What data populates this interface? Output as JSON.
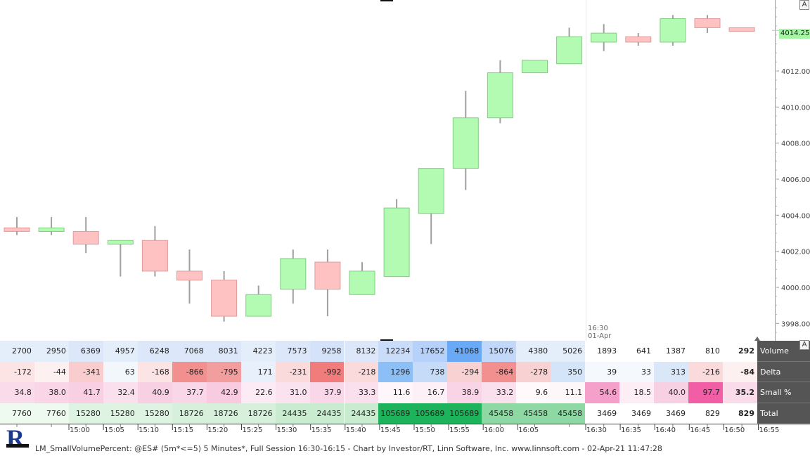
{
  "chart_data": {
    "type": "candlestick",
    "price_labels": [
      "4014.25",
      "4012.00",
      "4010.00",
      "4008.00",
      "4006.00",
      "4004.00",
      "4002.00",
      "4000.00",
      "3998.00"
    ],
    "current_price": "4014.25",
    "session_label_time": "16:30",
    "session_label_date": "01-Apr",
    "candles": [
      {
        "open": 4003.3,
        "close": 4003.1,
        "high": 4003.9,
        "low": 4002.9
      },
      {
        "open": 4003.1,
        "close": 4003.3,
        "high": 4003.9,
        "low": 4002.9
      },
      {
        "open": 4003.1,
        "close": 4002.4,
        "high": 4003.9,
        "low": 4001.9
      },
      {
        "open": 4002.4,
        "close": 4002.6,
        "high": 4002.6,
        "low": 4000.6
      },
      {
        "open": 4002.6,
        "close": 4000.9,
        "high": 4003.4,
        "low": 4000.6
      },
      {
        "open": 4000.9,
        "close": 4000.4,
        "high": 4002.1,
        "low": 3999.1
      },
      {
        "open": 4000.4,
        "close": 3998.4,
        "high": 4000.9,
        "low": 3998.1
      },
      {
        "open": 3998.4,
        "close": 3999.6,
        "high": 4000.1,
        "low": 3998.4
      },
      {
        "open": 3999.9,
        "close": 4001.6,
        "high": 4002.1,
        "low": 3999.1
      },
      {
        "open": 4001.4,
        "close": 3999.9,
        "high": 4002.1,
        "low": 3998.4
      },
      {
        "open": 3999.6,
        "close": 4000.9,
        "high": 4001.4,
        "low": 3999.6
      },
      {
        "open": 4000.6,
        "close": 4004.4,
        "high": 4004.9,
        "low": 4000.6
      },
      {
        "open": 4004.1,
        "close": 4006.6,
        "high": 4006.6,
        "low": 4002.4
      },
      {
        "open": 4006.6,
        "close": 4009.4,
        "high": 4010.9,
        "low": 4005.4
      },
      {
        "open": 4009.4,
        "close": 4011.9,
        "high": 4012.6,
        "low": 4009.1
      },
      {
        "open": 4011.9,
        "close": 4012.6,
        "high": 4012.6,
        "low": 4011.9
      },
      {
        "open": 4012.4,
        "close": 4013.9,
        "high": 4014.4,
        "low": 4012.4
      },
      {
        "open": 4013.6,
        "close": 4014.1,
        "high": 4014.6,
        "low": 4013.1
      },
      {
        "open": 4013.9,
        "close": 4013.6,
        "high": 4014.1,
        "low": 4013.4
      },
      {
        "open": 4013.6,
        "close": 4014.9,
        "high": 4015.1,
        "low": 4013.4
      },
      {
        "open": 4014.9,
        "close": 4014.4,
        "high": 4015.1,
        "low": 4014.1
      },
      {
        "open": 4014.4,
        "close": 4014.2,
        "high": 4014.4,
        "low": 4014.2
      }
    ],
    "time_labels": [
      "15:00",
      "15:05",
      "15:10",
      "15:15",
      "15:20",
      "15:25",
      "15:30",
      "15:35",
      "15:40",
      "15:45",
      "15:50",
      "15:55",
      "16:00",
      "16:05",
      "16:30",
      "16:35",
      "16:40",
      "16:45",
      "16:50",
      "16:55"
    ]
  },
  "stats_table": {
    "rows": [
      {
        "label": "Volume",
        "values": [
          "2700",
          "2950",
          "6369",
          "4957",
          "6248",
          "7068",
          "8031",
          "4223",
          "7573",
          "9258",
          "8132",
          "12234",
          "17652",
          "41068",
          "15076",
          "4380",
          "5026",
          "1893",
          "641",
          "1387",
          "810"
        ],
        "summary": "292",
        "colors": [
          "#e4edfa",
          "#e4edfa",
          "#dce8fa",
          "#e4edfa",
          "#dce8fa",
          "#dce8fa",
          "#dce8fa",
          "#e4edfa",
          "#dce8fa",
          "#d4e3fa",
          "#dce8fa",
          "#c9ddfa",
          "#b6d1fa",
          "#6aa9f5",
          "#c2d8fa",
          "#e4edfa",
          "#e4edfa",
          "#ffffff",
          "#ffffff",
          "#ffffff",
          "#ffffff"
        ],
        "summary_color": "#ffffff"
      },
      {
        "label": "Delta",
        "values": [
          "-172",
          "-44",
          "-341",
          "63",
          "-168",
          "-866",
          "-795",
          "171",
          "-231",
          "-992",
          "-218",
          "1296",
          "738",
          "-294",
          "-864",
          "-278",
          "350",
          "39",
          "33",
          "313",
          "-216"
        ],
        "summary": "-84",
        "colors": [
          "#fce4e4",
          "#fdf0f0",
          "#f9cdcd",
          "#f2f7fc",
          "#fce4e4",
          "#f2908f",
          "#f39e9e",
          "#e8f0fb",
          "#fadada",
          "#f07c7c",
          "#fadada",
          "#8cbff5",
          "#c5dbf8",
          "#f8d2d2",
          "#f2908f",
          "#f8d2d2",
          "#d4e5f9",
          "#f5f9fd",
          "#f5f9fd",
          "#d9e7f9",
          "#fadada"
        ],
        "summary_color": "#fdf0f0"
      },
      {
        "label": "Small %",
        "values": [
          "34.8",
          "38.0",
          "41.7",
          "32.4",
          "40.9",
          "37.7",
          "42.9",
          "22.6",
          "31.0",
          "37.9",
          "33.3",
          "11.6",
          "16.7",
          "38.9",
          "33.2",
          "9.6",
          "11.1",
          "54.6",
          "18.5",
          "40.0",
          "97.7"
        ],
        "summary": "35.2",
        "colors": [
          "#f9dbea",
          "#f9d5e7",
          "#f8cfe3",
          "#fae0ed",
          "#f8d0e4",
          "#f9d6e8",
          "#f8cbe1",
          "#fcebf4",
          "#fae2ee",
          "#f9d6e8",
          "#fae0ed",
          "#fef6fa",
          "#fdf0f6",
          "#f9d4e7",
          "#fae0ed",
          "#fff9fc",
          "#fef7fa",
          "#f59fcb",
          "#fdeef5",
          "#f8d0e4",
          "#f25ea6"
        ],
        "summary_color": "#f9dbea"
      },
      {
        "label": "Total",
        "values": [
          "7760",
          "7760",
          "15280",
          "15280",
          "15280",
          "18726",
          "18726",
          "18726",
          "24435",
          "24435",
          "24435",
          "105689",
          "105689",
          "105689",
          "45458",
          "45458",
          "45458",
          "3469",
          "3469",
          "3469",
          "829"
        ],
        "summary": "829",
        "colors": [
          "#eef9ef",
          "#eef9ef",
          "#dff3e2",
          "#dff3e2",
          "#dff3e2",
          "#d7f0db",
          "#d7f0db",
          "#d7f0db",
          "#c9ebcf",
          "#c9ebcf",
          "#c9ebcf",
          "#1db35a",
          "#1db35a",
          "#1db35a",
          "#8ed8a4",
          "#8ed8a4",
          "#8ed8a4",
          "#ffffff",
          "#ffffff",
          "#ffffff",
          "#ffffff"
        ],
        "summary_color": "#ffffff"
      }
    ]
  },
  "ui": {
    "autoscale_label": "A",
    "stats_autoscale_label": "A",
    "logo_letter": "R",
    "footer": "LM_SmallVolumePercent: @ES# (5m*<=5) 5 Minutes*, Full Session 16:30-16:15 - Chart by Investor/RT, Linn Software, Inc. www.linnsoft.com - 02-Apr-21 11:47:28"
  },
  "colors": {
    "up_candle": "#b3fbb3",
    "down_candle": "#fec2c2",
    "wick": "#a0a0a0",
    "axis_line": "#999999",
    "row_label_bg": "#555555"
  }
}
